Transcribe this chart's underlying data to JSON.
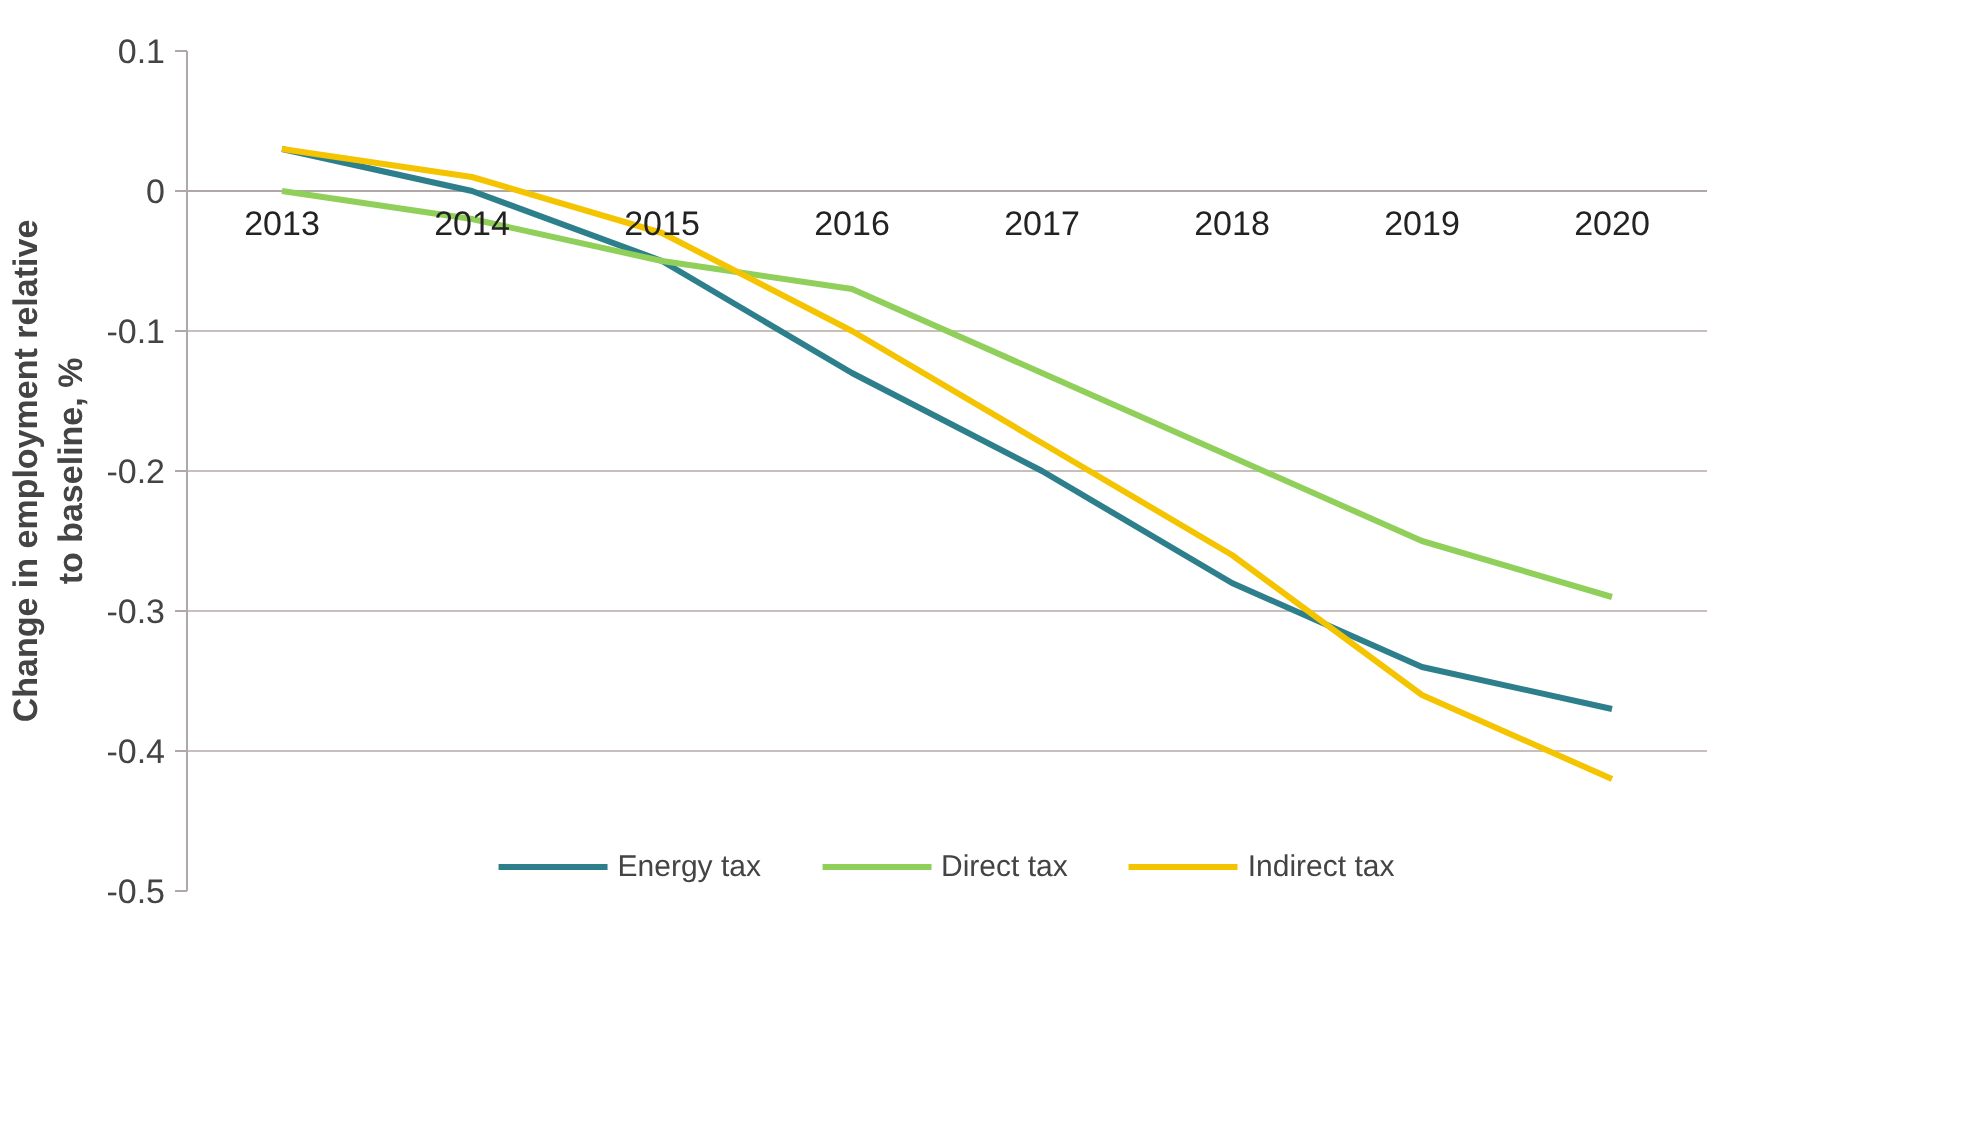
{
  "chart_data": {
    "type": "line",
    "ylabel": "Change in employment relative to baseline, %",
    "categories": [
      "2013",
      "2014",
      "2015",
      "2016",
      "2017",
      "2018",
      "2019",
      "2020"
    ],
    "series": [
      {
        "name": "Energy tax",
        "color": "#2e7f8c",
        "values": [
          0.03,
          0.0,
          -0.05,
          -0.13,
          -0.2,
          -0.28,
          -0.34,
          -0.37
        ]
      },
      {
        "name": "Direct tax",
        "color": "#8fcf5a",
        "values": [
          0.0,
          -0.02,
          -0.05,
          -0.07,
          -0.13,
          -0.19,
          -0.25,
          -0.29
        ]
      },
      {
        "name": "Indirect tax",
        "color": "#f5c400",
        "values": [
          0.03,
          0.01,
          -0.03,
          -0.1,
          -0.18,
          -0.26,
          -0.36,
          -0.42
        ]
      }
    ],
    "ylim": [
      -0.5,
      0.1
    ],
    "yticks": [
      -0.5,
      -0.4,
      -0.3,
      -0.2,
      -0.1,
      0,
      0.1
    ],
    "grid": "y",
    "legend": "bottom",
    "marker": "none",
    "line_style": "solid"
  }
}
